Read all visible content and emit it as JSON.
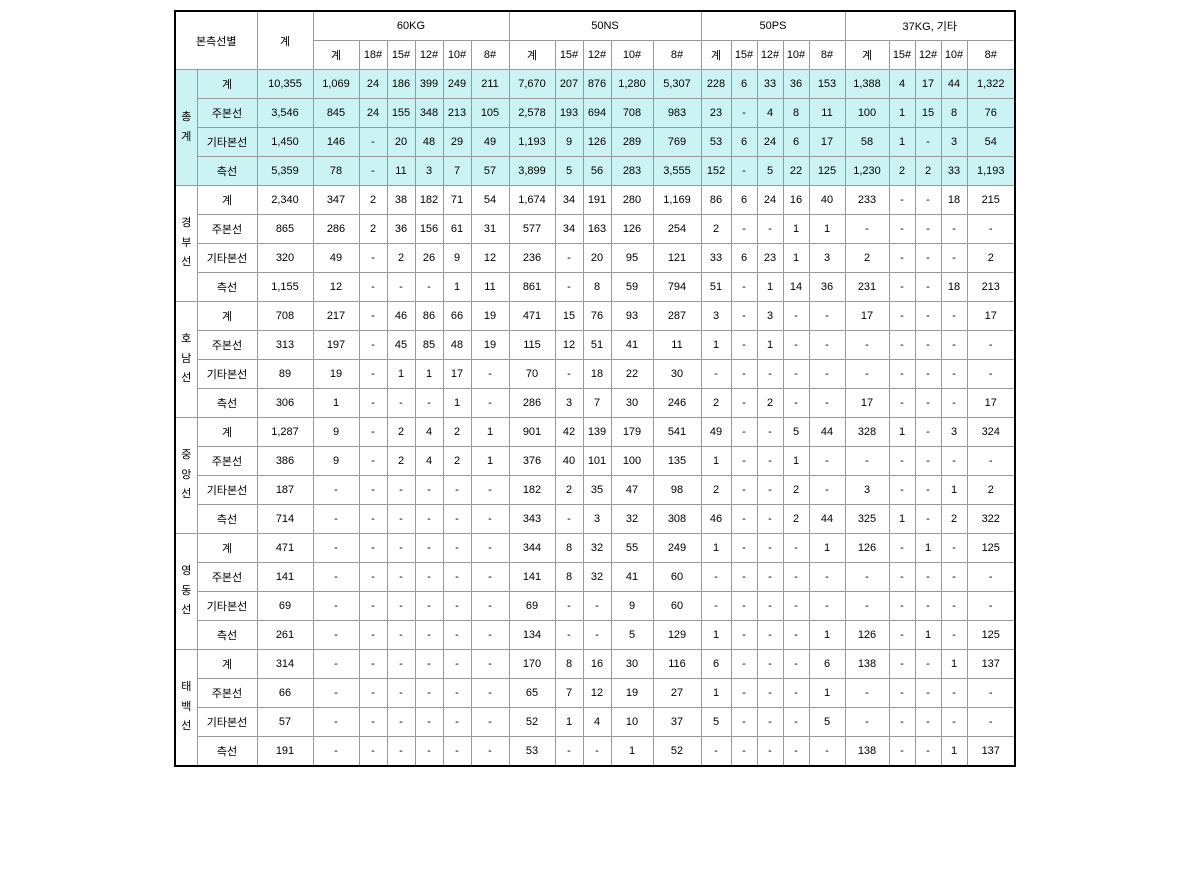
{
  "header": {
    "col1": "본측선별",
    "col2": "계",
    "g60": "60KG",
    "g50ns": "50NS",
    "g50ps": "50PS",
    "g37": "37KG, 기타",
    "sub_gye": "계",
    "s18": "18#",
    "s15": "15#",
    "s12": "12#",
    "s10": "10#",
    "s8": "8#"
  },
  "rowLabels": {
    "chonggye": "총 계",
    "gye": "계",
    "jubon": "주본선",
    "gita": "기타본선",
    "cheuk": "측선"
  },
  "sections": [
    {
      "name": "총 계",
      "highlight": true,
      "vlabel": [
        "총",
        "계"
      ],
      "rows": [
        {
          "label": "계",
          "vals": [
            "10,355",
            "1,069",
            "24",
            "186",
            "399",
            "249",
            "211",
            "7,670",
            "207",
            "876",
            "1,280",
            "5,307",
            "228",
            "6",
            "33",
            "36",
            "153",
            "1,388",
            "4",
            "17",
            "44",
            "1,322"
          ]
        },
        {
          "label": "주본선",
          "vals": [
            "3,546",
            "845",
            "24",
            "155",
            "348",
            "213",
            "105",
            "2,578",
            "193",
            "694",
            "708",
            "983",
            "23",
            "-",
            "4",
            "8",
            "11",
            "100",
            "1",
            "15",
            "8",
            "76"
          ]
        },
        {
          "label": "기타본선",
          "vals": [
            "1,450",
            "146",
            "-",
            "20",
            "48",
            "29",
            "49",
            "1,193",
            "9",
            "126",
            "289",
            "769",
            "53",
            "6",
            "24",
            "6",
            "17",
            "58",
            "1",
            "-",
            "3",
            "54"
          ]
        },
        {
          "label": "측선",
          "vals": [
            "5,359",
            "78",
            "-",
            "11",
            "3",
            "7",
            "57",
            "3,899",
            "5",
            "56",
            "283",
            "3,555",
            "152",
            "-",
            "5",
            "22",
            "125",
            "1,230",
            "2",
            "2",
            "33",
            "1,193"
          ]
        }
      ]
    },
    {
      "name": "경부선",
      "vlabel": [
        "경",
        "부",
        "선"
      ],
      "rows": [
        {
          "label": "계",
          "vals": [
            "2,340",
            "347",
            "2",
            "38",
            "182",
            "71",
            "54",
            "1,674",
            "34",
            "191",
            "280",
            "1,169",
            "86",
            "6",
            "24",
            "16",
            "40",
            "233",
            "-",
            "-",
            "18",
            "215"
          ]
        },
        {
          "label": "주본선",
          "vals": [
            "865",
            "286",
            "2",
            "36",
            "156",
            "61",
            "31",
            "577",
            "34",
            "163",
            "126",
            "254",
            "2",
            "-",
            "-",
            "1",
            "1",
            "-",
            "-",
            "-",
            "-",
            "-"
          ]
        },
        {
          "label": "기타본선",
          "vals": [
            "320",
            "49",
            "-",
            "2",
            "26",
            "9",
            "12",
            "236",
            "-",
            "20",
            "95",
            "121",
            "33",
            "6",
            "23",
            "1",
            "3",
            "2",
            "-",
            "-",
            "-",
            "2"
          ]
        },
        {
          "label": "측선",
          "vals": [
            "1,155",
            "12",
            "-",
            "-",
            "-",
            "1",
            "11",
            "861",
            "-",
            "8",
            "59",
            "794",
            "51",
            "-",
            "1",
            "14",
            "36",
            "231",
            "-",
            "-",
            "18",
            "213"
          ]
        }
      ]
    },
    {
      "name": "호남선",
      "vlabel": [
        "호",
        "남",
        "선"
      ],
      "rows": [
        {
          "label": "계",
          "vals": [
            "708",
            "217",
            "-",
            "46",
            "86",
            "66",
            "19",
            "471",
            "15",
            "76",
            "93",
            "287",
            "3",
            "-",
            "3",
            "-",
            "-",
            "17",
            "-",
            "-",
            "-",
            "17"
          ]
        },
        {
          "label": "주본선",
          "vals": [
            "313",
            "197",
            "-",
            "45",
            "85",
            "48",
            "19",
            "115",
            "12",
            "51",
            "41",
            "11",
            "1",
            "-",
            "1",
            "-",
            "-",
            "-",
            "-",
            "-",
            "-",
            "-"
          ]
        },
        {
          "label": "기타본선",
          "vals": [
            "89",
            "19",
            "-",
            "1",
            "1",
            "17",
            "-",
            "70",
            "-",
            "18",
            "22",
            "30",
            "-",
            "-",
            "-",
            "-",
            "-",
            "-",
            "-",
            "-",
            "-",
            "-"
          ]
        },
        {
          "label": "측선",
          "vals": [
            "306",
            "1",
            "-",
            "-",
            "-",
            "1",
            "-",
            "286",
            "3",
            "7",
            "30",
            "246",
            "2",
            "-",
            "2",
            "-",
            "-",
            "17",
            "-",
            "-",
            "-",
            "17"
          ]
        }
      ]
    },
    {
      "name": "중앙선",
      "vlabel": [
        "중",
        "앙",
        "선"
      ],
      "rows": [
        {
          "label": "계",
          "vals": [
            "1,287",
            "9",
            "-",
            "2",
            "4",
            "2",
            "1",
            "901",
            "42",
            "139",
            "179",
            "541",
            "49",
            "-",
            "-",
            "5",
            "44",
            "328",
            "1",
            "-",
            "3",
            "324"
          ]
        },
        {
          "label": "주본선",
          "vals": [
            "386",
            "9",
            "-",
            "2",
            "4",
            "2",
            "1",
            "376",
            "40",
            "101",
            "100",
            "135",
            "1",
            "-",
            "-",
            "1",
            "-",
            "-",
            "-",
            "-",
            "-",
            "-"
          ]
        },
        {
          "label": "기타본선",
          "vals": [
            "187",
            "-",
            "-",
            "-",
            "-",
            "-",
            "-",
            "182",
            "2",
            "35",
            "47",
            "98",
            "2",
            "-",
            "-",
            "2",
            "-",
            "3",
            "-",
            "-",
            "1",
            "2"
          ]
        },
        {
          "label": "측선",
          "vals": [
            "714",
            "-",
            "-",
            "-",
            "-",
            "-",
            "-",
            "343",
            "-",
            "3",
            "32",
            "308",
            "46",
            "-",
            "-",
            "2",
            "44",
            "325",
            "1",
            "-",
            "2",
            "322"
          ]
        }
      ]
    },
    {
      "name": "영동선",
      "vlabel": [
        "영",
        "동",
        "선"
      ],
      "rows": [
        {
          "label": "계",
          "vals": [
            "471",
            "-",
            "-",
            "-",
            "-",
            "-",
            "-",
            "344",
            "8",
            "32",
            "55",
            "249",
            "1",
            "-",
            "-",
            "-",
            "1",
            "126",
            "-",
            "1",
            "-",
            "125"
          ]
        },
        {
          "label": "주본선",
          "vals": [
            "141",
            "-",
            "-",
            "-",
            "-",
            "-",
            "-",
            "141",
            "8",
            "32",
            "41",
            "60",
            "-",
            "-",
            "-",
            "-",
            "-",
            "-",
            "-",
            "-",
            "-",
            "-"
          ]
        },
        {
          "label": "기타본선",
          "vals": [
            "69",
            "-",
            "-",
            "-",
            "-",
            "-",
            "-",
            "69",
            "-",
            "-",
            "9",
            "60",
            "-",
            "-",
            "-",
            "-",
            "-",
            "-",
            "-",
            "-",
            "-",
            "-"
          ]
        },
        {
          "label": "측선",
          "vals": [
            "261",
            "-",
            "-",
            "-",
            "-",
            "-",
            "-",
            "134",
            "-",
            "-",
            "5",
            "129",
            "1",
            "-",
            "-",
            "-",
            "1",
            "126",
            "-",
            "1",
            "-",
            "125"
          ]
        }
      ]
    },
    {
      "name": "태백선",
      "vlabel": [
        "태",
        "백",
        "선"
      ],
      "rows": [
        {
          "label": "계",
          "vals": [
            "314",
            "-",
            "-",
            "-",
            "-",
            "-",
            "-",
            "170",
            "8",
            "16",
            "30",
            "116",
            "6",
            "-",
            "-",
            "-",
            "6",
            "138",
            "-",
            "-",
            "1",
            "137"
          ]
        },
        {
          "label": "주본선",
          "vals": [
            "66",
            "-",
            "-",
            "-",
            "-",
            "-",
            "-",
            "65",
            "7",
            "12",
            "19",
            "27",
            "1",
            "-",
            "-",
            "-",
            "1",
            "-",
            "-",
            "-",
            "-",
            "-"
          ]
        },
        {
          "label": "기타본선",
          "vals": [
            "57",
            "-",
            "-",
            "-",
            "-",
            "-",
            "-",
            "52",
            "1",
            "4",
            "10",
            "37",
            "5",
            "-",
            "-",
            "-",
            "5",
            "-",
            "-",
            "-",
            "-",
            "-"
          ]
        },
        {
          "label": "측선",
          "vals": [
            "191",
            "-",
            "-",
            "-",
            "-",
            "-",
            "-",
            "53",
            "-",
            "-",
            "1",
            "52",
            "-",
            "-",
            "-",
            "-",
            "-",
            "138",
            "-",
            "-",
            "1",
            "137"
          ]
        }
      ]
    }
  ],
  "style": {
    "highlight_bg": "#ccf3f3",
    "border_color": "#999999",
    "font_size": 11,
    "colwidths": {
      "vlabel": 22,
      "rowlabel": 60,
      "total": 56,
      "sub": 46,
      "narrow": 28,
      "wide": 48
    }
  }
}
